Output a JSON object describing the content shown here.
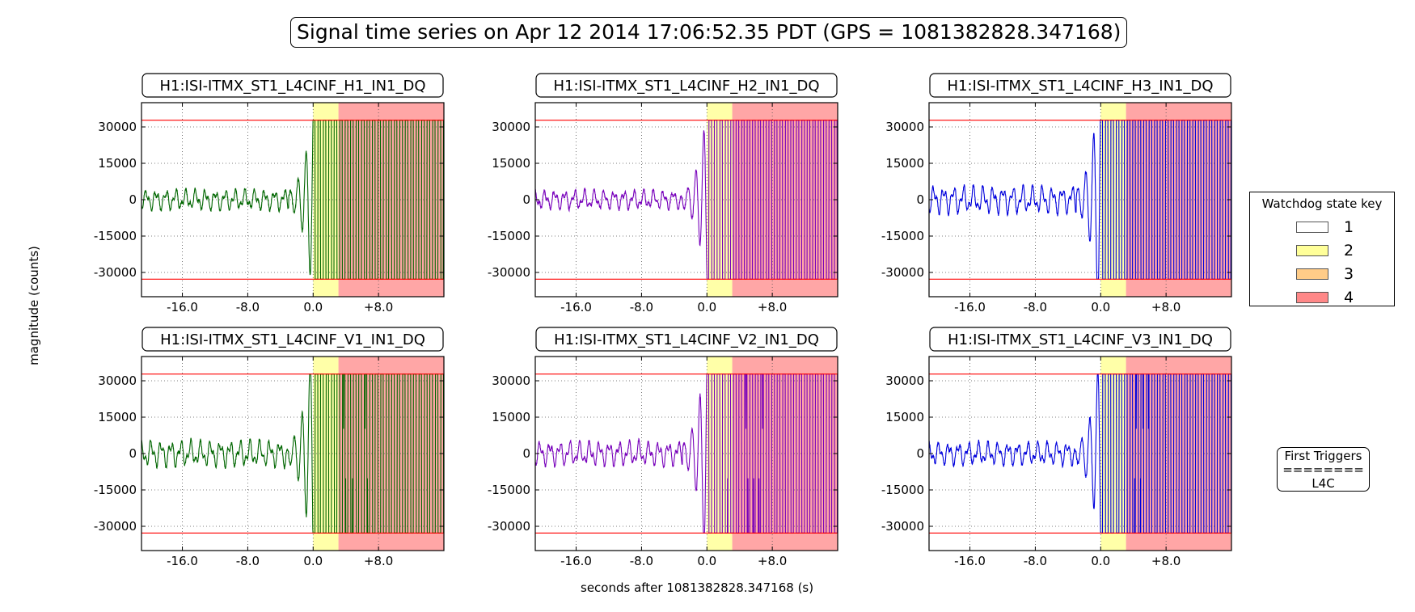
{
  "figure": {
    "title": "Signal time series on Apr 12 2014 17:06:52.35 PDT (GPS = 1081382828.347168)",
    "xlabel": "seconds after 1081382828.347168 (s)",
    "ylabel": "magnitude (counts)"
  },
  "legend": {
    "title": "Watchdog state key",
    "items": [
      {
        "label": "1",
        "color": "#ffffff"
      },
      {
        "label": "2",
        "color": "#ffff99"
      },
      {
        "label": "3",
        "color": "#ffcc88"
      },
      {
        "label": "4",
        "color": "#ff8888"
      }
    ]
  },
  "first_triggers": {
    "title": "First Triggers",
    "separator": "========",
    "value": "L4C"
  },
  "chart_data": [
    {
      "type": "line",
      "title": "H1:ISI-ITMX_ST1_L4CINF_H1_IN1_DQ",
      "color": "#006600",
      "xlim": [
        -21,
        16
      ],
      "ylim": [
        -40000,
        40000
      ],
      "xticks": [
        -16,
        -8,
        0,
        8
      ],
      "xtick_labels": [
        "-16.0",
        "-8.0",
        "0.0",
        "+8.0"
      ],
      "yticks": [
        30000,
        15000,
        0,
        -15000,
        -30000
      ],
      "ytick_labels": [
        "30000",
        "15000",
        "0",
        "-15000",
        "-30000"
      ],
      "threshold_lines": [
        32767,
        -32767
      ],
      "threshold_color": "#ff0000",
      "state_bands": [
        {
          "state": "2",
          "x0": 0,
          "x1": 3.1,
          "color": "#ffff99"
        },
        {
          "state": "4",
          "x0": 3.1,
          "x1": 16,
          "color": "#ff8888"
        }
      ],
      "grid": true
    },
    {
      "type": "line",
      "title": "H1:ISI-ITMX_ST1_L4CINF_H2_IN1_DQ",
      "color": "#7700bb",
      "xlim": [
        -21,
        16
      ],
      "ylim": [
        -40000,
        40000
      ],
      "xticks": [
        -16,
        -8,
        0,
        8
      ],
      "xtick_labels": [
        "-16.0",
        "-8.0",
        "0.0",
        "+8.0"
      ],
      "yticks": [
        30000,
        15000,
        0,
        -15000,
        -30000
      ],
      "ytick_labels": [
        "30000",
        "15000",
        "0",
        "-15000",
        "-30000"
      ],
      "threshold_lines": [
        32767,
        -32767
      ],
      "threshold_color": "#ff0000",
      "state_bands": [
        {
          "state": "2",
          "x0": 0,
          "x1": 3.1,
          "color": "#ffff99"
        },
        {
          "state": "4",
          "x0": 3.1,
          "x1": 16,
          "color": "#ff8888"
        }
      ],
      "grid": true
    },
    {
      "type": "line",
      "title": "H1:ISI-ITMX_ST1_L4CINF_H3_IN1_DQ",
      "color": "#0000dd",
      "xlim": [
        -21,
        16
      ],
      "ylim": [
        -40000,
        40000
      ],
      "xticks": [
        -16,
        -8,
        0,
        8
      ],
      "xtick_labels": [
        "-16.0",
        "-8.0",
        "0.0",
        "+8.0"
      ],
      "yticks": [
        30000,
        15000,
        0,
        -15000,
        -30000
      ],
      "ytick_labels": [
        "30000",
        "15000",
        "0",
        "-15000",
        "-30000"
      ],
      "threshold_lines": [
        32767,
        -32767
      ],
      "threshold_color": "#ff0000",
      "state_bands": [
        {
          "state": "2",
          "x0": 0,
          "x1": 3.1,
          "color": "#ffff99"
        },
        {
          "state": "4",
          "x0": 3.1,
          "x1": 16,
          "color": "#ff8888"
        }
      ],
      "grid": true
    },
    {
      "type": "line",
      "title": "H1:ISI-ITMX_ST1_L4CINF_V1_IN1_DQ",
      "color": "#006600",
      "xlim": [
        -21,
        16
      ],
      "ylim": [
        -40000,
        40000
      ],
      "xticks": [
        -16,
        -8,
        0,
        8
      ],
      "xtick_labels": [
        "-16.0",
        "-8.0",
        "0.0",
        "+8.0"
      ],
      "yticks": [
        30000,
        15000,
        0,
        -15000,
        -30000
      ],
      "ytick_labels": [
        "30000",
        "15000",
        "0",
        "-15000",
        "-30000"
      ],
      "threshold_lines": [
        32767,
        -32767
      ],
      "threshold_color": "#ff0000",
      "state_bands": [
        {
          "state": "2",
          "x0": 0,
          "x1": 3.1,
          "color": "#ffff99"
        },
        {
          "state": "4",
          "x0": 3.1,
          "x1": 16,
          "color": "#ff8888"
        }
      ],
      "grid": true
    },
    {
      "type": "line",
      "title": "H1:ISI-ITMX_ST1_L4CINF_V2_IN1_DQ",
      "color": "#7700bb",
      "xlim": [
        -21,
        16
      ],
      "ylim": [
        -40000,
        40000
      ],
      "xticks": [
        -16,
        -8,
        0,
        8
      ],
      "xtick_labels": [
        "-16.0",
        "-8.0",
        "0.0",
        "+8.0"
      ],
      "yticks": [
        30000,
        15000,
        0,
        -15000,
        -30000
      ],
      "ytick_labels": [
        "30000",
        "15000",
        "0",
        "-15000",
        "-30000"
      ],
      "threshold_lines": [
        32767,
        -32767
      ],
      "threshold_color": "#ff0000",
      "state_bands": [
        {
          "state": "2",
          "x0": 0,
          "x1": 3.1,
          "color": "#ffff99"
        },
        {
          "state": "4",
          "x0": 3.1,
          "x1": 16,
          "color": "#ff8888"
        }
      ],
      "grid": true
    },
    {
      "type": "line",
      "title": "H1:ISI-ITMX_ST1_L4CINF_V3_IN1_DQ",
      "color": "#0000dd",
      "xlim": [
        -21,
        16
      ],
      "ylim": [
        -40000,
        40000
      ],
      "xticks": [
        -16,
        -8,
        0,
        8
      ],
      "xtick_labels": [
        "-16.0",
        "-8.0",
        "0.0",
        "+8.0"
      ],
      "yticks": [
        30000,
        15000,
        0,
        -15000,
        -30000
      ],
      "ytick_labels": [
        "30000",
        "15000",
        "0",
        "-15000",
        "-30000"
      ],
      "threshold_lines": [
        32767,
        -32767
      ],
      "threshold_color": "#ff0000",
      "state_bands": [
        {
          "state": "2",
          "x0": 0,
          "x1": 3.1,
          "color": "#ffff99"
        },
        {
          "state": "4",
          "x0": 3.1,
          "x1": 16,
          "color": "#ff8888"
        }
      ],
      "grid": true
    }
  ]
}
